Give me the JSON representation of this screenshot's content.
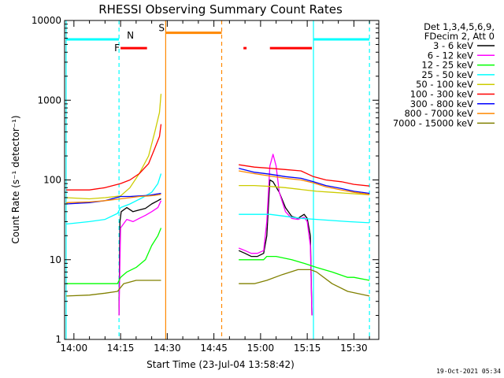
{
  "chart_data": {
    "type": "line",
    "title": "RHESSI Observing Summary Count Rates",
    "xlabel": "Start Time (23-Jul-04 13:58:42)",
    "ylabel": "Count Rate (s⁻¹ detector⁻¹)",
    "y_scale": "log",
    "ylim": [
      1,
      10000
    ],
    "xlim_minutes": [
      -3,
      98
    ],
    "x_ticks": [
      {
        "label": "14:00",
        "minute": 0
      },
      {
        "label": "14:15",
        "minute": 15
      },
      {
        "label": "14:30",
        "minute": 30
      },
      {
        "label": "14:45",
        "minute": 45
      },
      {
        "label": "15:00",
        "minute": 60
      },
      {
        "label": "15:15",
        "minute": 75
      },
      {
        "label": "15:30",
        "minute": 90
      }
    ],
    "y_ticks": [
      {
        "label": "1",
        "value": 1
      },
      {
        "label": "10",
        "value": 10
      },
      {
        "label": "100",
        "value": 100
      },
      {
        "label": "1000",
        "value": 1000
      },
      {
        "label": "10000",
        "value": 10000
      }
    ],
    "legend_header": [
      "Det 1,3,4,5,6,9,",
      "FDecim 2, Att 0"
    ],
    "legend_placement": "right",
    "timestamp": "19-Oct-2021 05:34",
    "flag_labels": {
      "night": "N",
      "flare": "F",
      "saa": "S"
    },
    "series": [
      {
        "name": "3 - 6 keV",
        "color": "#000000",
        "segments": [
          [
            [
              14.5,
              2
            ],
            [
              14.8,
              30
            ],
            [
              15.2,
              40
            ],
            [
              17,
              45
            ],
            [
              19,
              40
            ],
            [
              21,
              42
            ],
            [
              23,
              44
            ],
            [
              25,
              50
            ],
            [
              27,
              55
            ],
            [
              28,
              58
            ]
          ],
          [
            [
              53,
              13
            ],
            [
              55,
              12
            ],
            [
              57,
              11
            ],
            [
              59,
              11
            ],
            [
              61,
              12
            ],
            [
              62,
              20
            ],
            [
              63,
              100
            ],
            [
              64,
              95
            ],
            [
              66,
              70
            ],
            [
              68,
              45
            ],
            [
              70,
              35
            ],
            [
              72,
              33
            ],
            [
              74,
              37
            ],
            [
              75,
              33
            ],
            [
              76,
              20
            ],
            [
              76.5,
              2
            ]
          ]
        ]
      },
      {
        "name": "6 - 12 keV",
        "color": "#ff00ff",
        "segments": [
          [
            [
              14.5,
              2
            ],
            [
              15,
              25
            ],
            [
              17,
              32
            ],
            [
              19,
              30
            ],
            [
              21,
              33
            ],
            [
              23,
              36
            ],
            [
              25,
              40
            ],
            [
              27,
              45
            ],
            [
              28,
              55
            ]
          ],
          [
            [
              53,
              14
            ],
            [
              55,
              13
            ],
            [
              57,
              12
            ],
            [
              59,
              12
            ],
            [
              61,
              13
            ],
            [
              62,
              30
            ],
            [
              63,
              150
            ],
            [
              64,
              210
            ],
            [
              65,
              150
            ],
            [
              66,
              70
            ],
            [
              68,
              40
            ],
            [
              70,
              33
            ],
            [
              72,
              32
            ],
            [
              74,
              34
            ],
            [
              75,
              30
            ],
            [
              76,
              15
            ],
            [
              76.5,
              2
            ]
          ]
        ]
      },
      {
        "name": "12 - 25 keV",
        "color": "#00ff00",
        "segments": [
          [
            [
              -2.5,
              5
            ],
            [
              5,
              5
            ],
            [
              10,
              5
            ],
            [
              14,
              5
            ],
            [
              15,
              6
            ],
            [
              17,
              7
            ],
            [
              20,
              8
            ],
            [
              23,
              10
            ],
            [
              25,
              15
            ],
            [
              27,
              20
            ],
            [
              28,
              25
            ]
          ],
          [
            [
              53,
              10
            ],
            [
              58,
              10
            ],
            [
              61,
              10
            ],
            [
              62,
              11
            ],
            [
              65,
              11
            ],
            [
              70,
              10
            ],
            [
              74,
              9
            ],
            [
              78,
              8
            ],
            [
              83,
              7
            ],
            [
              88,
              6
            ],
            [
              90,
              6
            ],
            [
              95,
              5.5
            ]
          ]
        ]
      },
      {
        "name": "25 - 50 keV",
        "color": "#00ffff",
        "segments": [
          [
            [
              -2.5,
              28
            ],
            [
              5,
              30
            ],
            [
              10,
              32
            ],
            [
              14,
              38
            ],
            [
              15,
              45
            ],
            [
              18,
              50
            ],
            [
              22,
              60
            ],
            [
              25,
              70
            ],
            [
              27,
              90
            ],
            [
              28,
              120
            ]
          ],
          [
            [
              53,
              37
            ],
            [
              58,
              37
            ],
            [
              63,
              37
            ],
            [
              68,
              35
            ],
            [
              73,
              33
            ],
            [
              78,
              32
            ],
            [
              83,
              31
            ],
            [
              88,
              30
            ],
            [
              95,
              29
            ]
          ]
        ]
      },
      {
        "name": "50 - 100 keV",
        "color": "#cccc00",
        "segments": [
          [
            [
              -2.5,
              60
            ],
            [
              5,
              58
            ],
            [
              10,
              60
            ],
            [
              15,
              63
            ],
            [
              18,
              80
            ],
            [
              21,
              120
            ],
            [
              24,
              200
            ],
            [
              26,
              400
            ],
            [
              27.5,
              700
            ],
            [
              28,
              1200
            ]
          ],
          [
            [
              53,
              85
            ],
            [
              58,
              85
            ],
            [
              63,
              83
            ],
            [
              68,
              80
            ],
            [
              73,
              76
            ],
            [
              78,
              72
            ],
            [
              83,
              70
            ],
            [
              88,
              68
            ],
            [
              95,
              65
            ]
          ]
        ]
      },
      {
        "name": "100 - 300 keV",
        "color": "#ff0000",
        "segments": [
          [
            [
              -2.5,
              75
            ],
            [
              5,
              75
            ],
            [
              10,
              80
            ],
            [
              15,
              90
            ],
            [
              18,
              100
            ],
            [
              21,
              120
            ],
            [
              24,
              160
            ],
            [
              26,
              250
            ],
            [
              27.5,
              350
            ],
            [
              28,
              500
            ]
          ],
          [
            [
              53,
              155
            ],
            [
              58,
              145
            ],
            [
              63,
              140
            ],
            [
              68,
              135
            ],
            [
              73,
              130
            ],
            [
              77,
              110
            ],
            [
              81,
              100
            ],
            [
              86,
              95
            ],
            [
              90,
              88
            ],
            [
              95,
              84
            ]
          ]
        ]
      },
      {
        "name": "300 - 800 keV",
        "color": "#0000ff",
        "segments": [
          [
            [
              -2.5,
              50
            ],
            [
              5,
              52
            ],
            [
              10,
              55
            ],
            [
              15,
              62
            ],
            [
              18,
              62
            ],
            [
              21,
              63
            ],
            [
              24,
              64
            ],
            [
              26,
              66
            ],
            [
              28,
              68
            ]
          ],
          [
            [
              53,
              140
            ],
            [
              58,
              125
            ],
            [
              63,
              118
            ],
            [
              68,
              110
            ],
            [
              73,
              105
            ],
            [
              77,
              95
            ],
            [
              81,
              85
            ],
            [
              86,
              78
            ],
            [
              90,
              72
            ],
            [
              95,
              68
            ]
          ]
        ]
      },
      {
        "name": "800 - 7000 keV",
        "color": "#ff8800",
        "segments": [
          [
            [
              -2.5,
              52
            ],
            [
              5,
              53
            ],
            [
              10,
              55
            ],
            [
              15,
              58
            ],
            [
              18,
              60
            ],
            [
              21,
              62
            ],
            [
              24,
              63
            ],
            [
              26,
              64
            ],
            [
              28,
              66
            ]
          ],
          [
            [
              53,
              130
            ],
            [
              58,
              120
            ],
            [
              63,
              112
            ],
            [
              68,
              105
            ],
            [
              73,
              100
            ],
            [
              77,
              92
            ],
            [
              81,
              82
            ],
            [
              86,
              75
            ],
            [
              90,
              70
            ],
            [
              95,
              66
            ]
          ]
        ]
      },
      {
        "name": "7000 - 15000 keV",
        "color": "#808000",
        "segments": [
          [
            [
              -2.5,
              3.5
            ],
            [
              5,
              3.6
            ],
            [
              10,
              3.8
            ],
            [
              14,
              4
            ],
            [
              16,
              5
            ],
            [
              20,
              5.5
            ],
            [
              25,
              5.5
            ],
            [
              28,
              5.5
            ]
          ],
          [
            [
              53,
              5
            ],
            [
              58,
              5
            ],
            [
              62,
              5.5
            ],
            [
              67,
              6.5
            ],
            [
              72,
              7.5
            ],
            [
              76,
              7.5
            ],
            [
              78,
              7
            ],
            [
              83,
              5
            ],
            [
              88,
              4
            ],
            [
              95,
              3.5
            ]
          ]
        ]
      }
    ],
    "flags": [
      {
        "type": "night",
        "color": "#00ffff",
        "level": 5800,
        "start": -2.5,
        "end": 14.5
      },
      {
        "type": "night",
        "color": "#00ffff",
        "level": 5800,
        "start": 77,
        "end": 95
      },
      {
        "type": "flare",
        "color": "#ff0000",
        "level": 4500,
        "start": 15,
        "end": 23.5
      },
      {
        "type": "flare",
        "color": "#ff0000",
        "level": 4500,
        "start": 54.5,
        "end": 55.5
      },
      {
        "type": "flare",
        "color": "#ff0000",
        "level": 4500,
        "start": 63,
        "end": 76.5
      },
      {
        "type": "saa",
        "color": "#ff8800",
        "level": 7000,
        "start": 29.5,
        "end": 47.5
      }
    ],
    "vlines": [
      {
        "minute": -2.5,
        "color": "#00ffff",
        "dashed": false
      },
      {
        "minute": 14.5,
        "color": "#00ffff",
        "dashed": true
      },
      {
        "minute": 29.5,
        "color": "#ff8800",
        "dashed": false
      },
      {
        "minute": 47.5,
        "color": "#ff8800",
        "dashed": true
      },
      {
        "minute": 77,
        "color": "#00ffff",
        "dashed": false
      },
      {
        "minute": 95,
        "color": "#00ffff",
        "dashed": true
      }
    ]
  }
}
